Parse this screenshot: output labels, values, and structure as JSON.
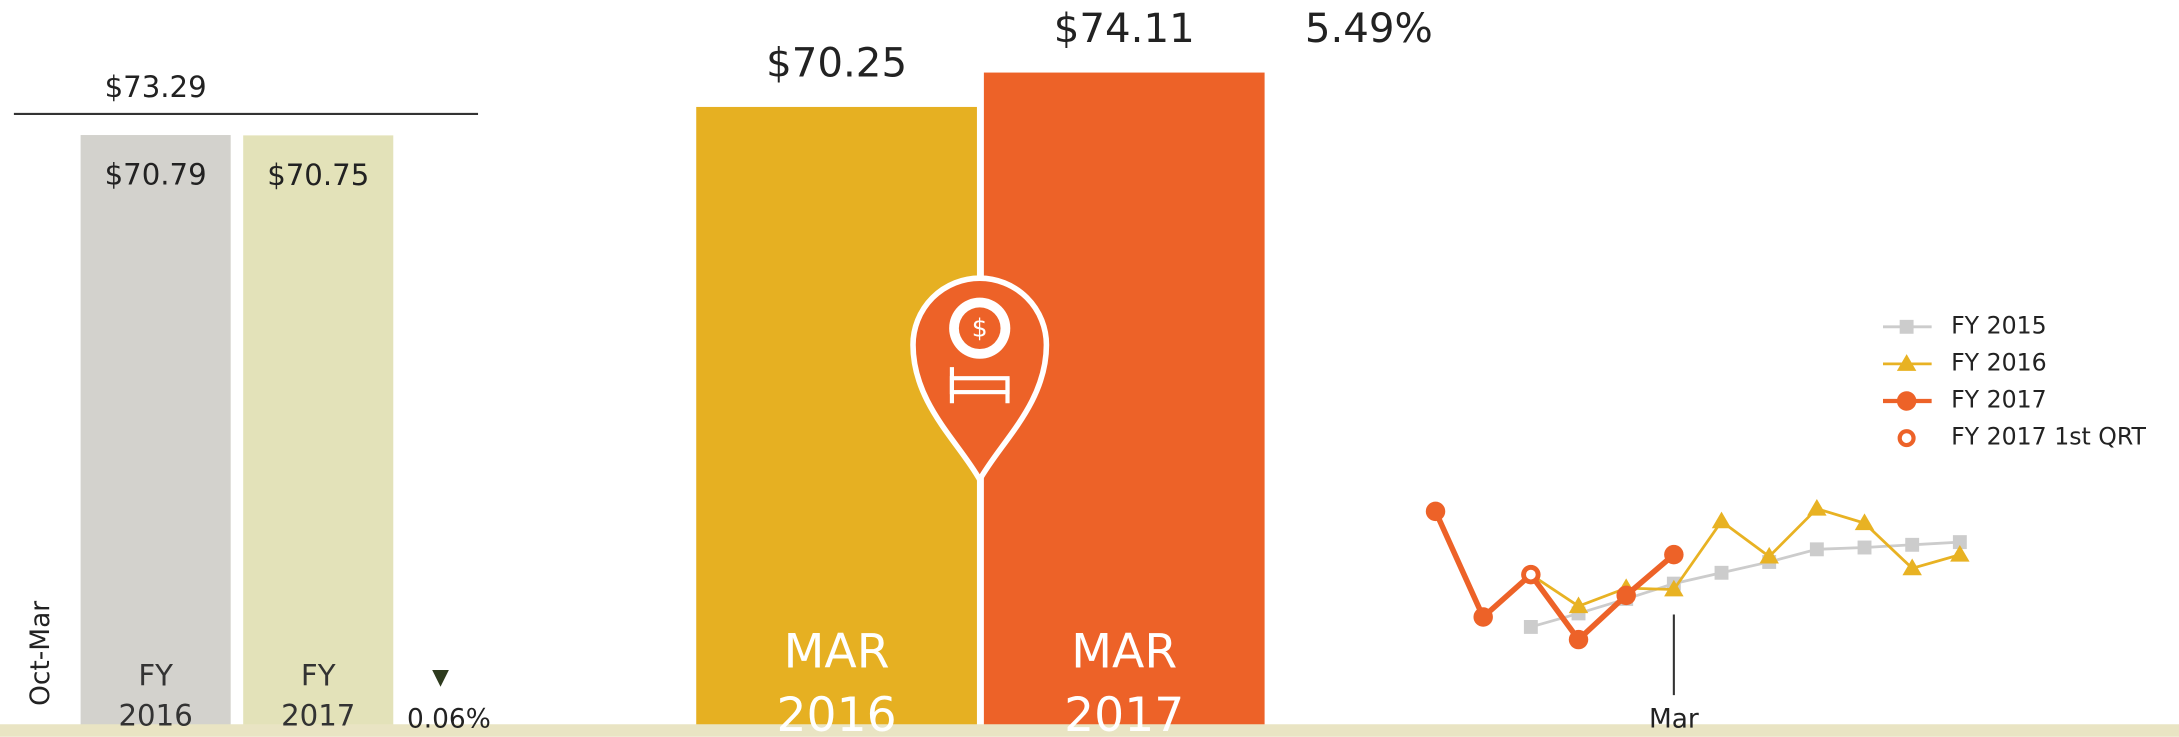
{
  "chart_data": [
    {
      "type": "bar",
      "axis_label": "Oct-Mar",
      "categories": [
        "FY 2016",
        "FY 2017"
      ],
      "values": [
        70.79,
        70.75
      ],
      "value_labels": [
        "$70.79",
        "$70.75"
      ],
      "colors": [
        "#d3d2cd",
        "#e3e2b9"
      ],
      "ylim": [
        0,
        74
      ],
      "reference": {
        "value": 73.29,
        "label": "$73.29"
      },
      "change": {
        "value": 0.06,
        "label": "0.06%",
        "direction": "down"
      }
    },
    {
      "type": "bar",
      "categories": [
        "MAR 2016",
        "MAR 2017"
      ],
      "values": [
        70.25,
        74.11
      ],
      "value_labels": [
        "$70.25",
        "$74.11"
      ],
      "colors": [
        "#e6b022",
        "#ed6228"
      ],
      "ylim": [
        0,
        80
      ],
      "change": {
        "value": 5.49,
        "label": "5.49%"
      }
    },
    {
      "type": "line",
      "categories": [
        null,
        null,
        null,
        null,
        null,
        "Mar",
        null,
        null,
        null,
        null,
        null,
        null
      ],
      "ylim": [
        60,
        82
      ],
      "series": [
        {
          "name": "FY 2015",
          "color": "#cccccc",
          "marker": "square",
          "values": [
            null,
            null,
            66.1,
            67.6,
            69.2,
            70.9,
            72.1,
            73.3,
            74.7,
            74.9,
            75.2,
            75.5
          ]
        },
        {
          "name": "FY 2016",
          "color": "#e8b223",
          "marker": "triangle",
          "values": [
            null,
            null,
            71.9,
            68.4,
            70.4,
            70.25,
            77.8,
            73.9,
            79.2,
            77.6,
            72.6,
            74.1
          ]
        },
        {
          "name": "FY 2017",
          "color": "#ed6228",
          "marker": "circle",
          "values": [
            78.9,
            67.2,
            71.9,
            64.7,
            69.6,
            74.11,
            null,
            null,
            null,
            null,
            null,
            null
          ]
        },
        {
          "name": "FY 2017 1st QRT",
          "color": "#ed6228",
          "marker": "ring",
          "values": [
            null,
            null,
            71.9,
            null,
            null,
            null,
            null,
            null,
            null,
            null,
            null,
            null
          ]
        }
      ]
    }
  ]
}
